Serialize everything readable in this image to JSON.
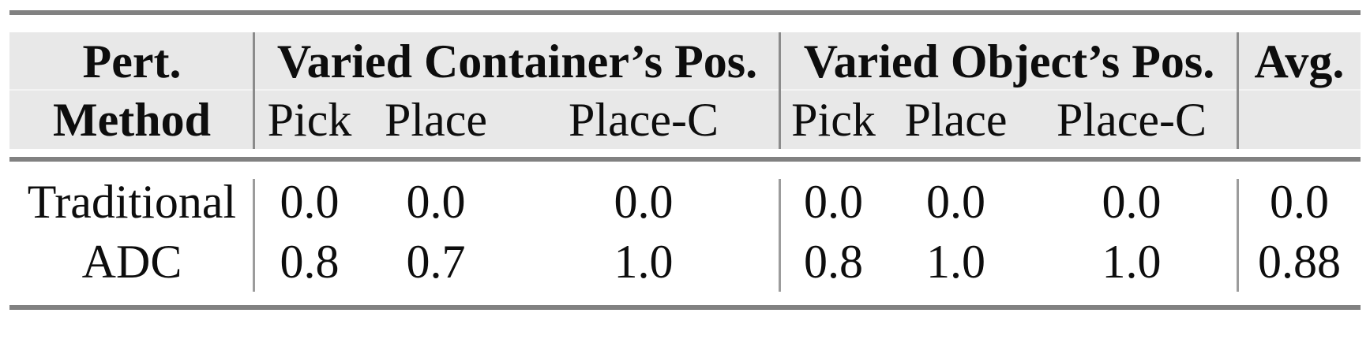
{
  "table": {
    "header": {
      "col1_line1": "Pert.",
      "col1_line2": "Method",
      "group1": "Varied Container’s Pos.",
      "group2": "Varied Object’s Pos.",
      "avg": "Avg.",
      "subheaders": [
        "Pick",
        "Place",
        "Place-C",
        "Pick",
        "Place",
        "Place-C"
      ]
    },
    "rows": [
      {
        "method": "Traditional",
        "values": [
          "0.0",
          "0.0",
          "0.0",
          "0.0",
          "0.0",
          "0.0"
        ],
        "avg": "0.0"
      },
      {
        "method": "ADC",
        "values": [
          "0.8",
          "0.7",
          "1.0",
          "0.8",
          "1.0",
          "1.0"
        ],
        "avg": "0.88"
      }
    ]
  },
  "colors": {
    "header_background": "#e8e8e8",
    "rule_gray": "#818181",
    "separator_gray": "#8b8b8b",
    "text": "#0d0d0d",
    "page_background": "#ffffff"
  }
}
